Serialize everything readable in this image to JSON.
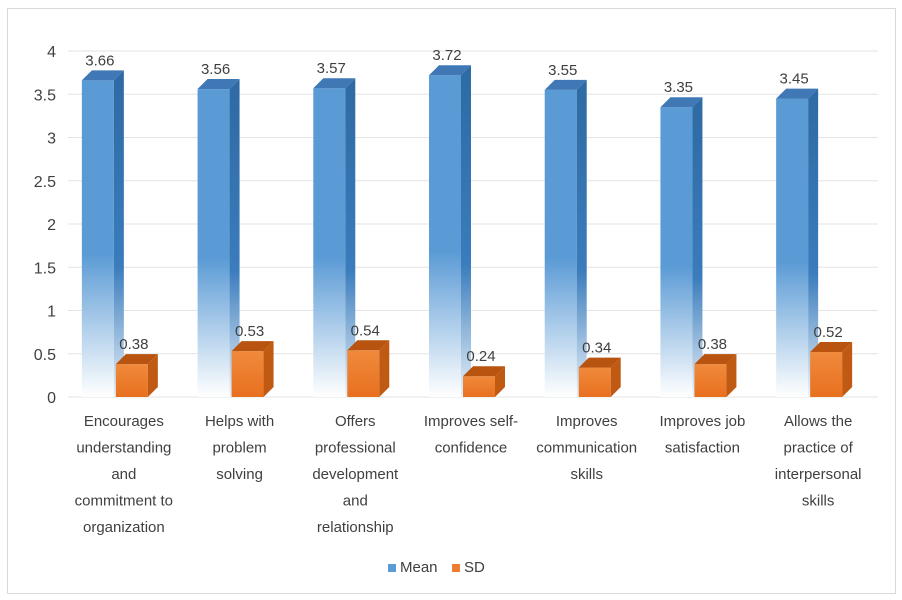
{
  "chart_data": {
    "type": "bar",
    "categories": [
      [
        "Encourages",
        "understanding",
        "and",
        "commitment to",
        "organization"
      ],
      [
        "Helps with",
        "problem",
        "solving"
      ],
      [
        "Offers",
        "professional",
        "development",
        "and",
        "relationship"
      ],
      [
        "Improves self-",
        "confidence"
      ],
      [
        "Improves",
        "communication",
        "skills"
      ],
      [
        "Improves job",
        "satisfaction"
      ],
      [
        "Allows the",
        "practice of",
        "interpersonal",
        "skills"
      ]
    ],
    "series": [
      {
        "name": "Mean",
        "values": [
          3.66,
          3.56,
          3.57,
          3.72,
          3.55,
          3.35,
          3.45
        ],
        "labels": [
          "3.66",
          "3.56",
          "3.57",
          "3.72",
          "3.55",
          "3.35",
          "3.45"
        ],
        "color": "#5b9bd5"
      },
      {
        "name": "SD",
        "values": [
          0.38,
          0.53,
          0.54,
          0.24,
          0.34,
          0.38,
          0.52
        ],
        "labels": [
          "0.38",
          "0.53",
          "0.54",
          "0.24",
          "0.34",
          "0.38",
          "0.52"
        ],
        "color": "#ed7d31"
      }
    ],
    "ylim": [
      0,
      4
    ],
    "yticks": [
      "0",
      "0.5",
      "1",
      "1.5",
      "2",
      "2.5",
      "3",
      "3.5",
      "4"
    ],
    "grid": true,
    "legend_position": "bottom",
    "style": "3d-column"
  }
}
